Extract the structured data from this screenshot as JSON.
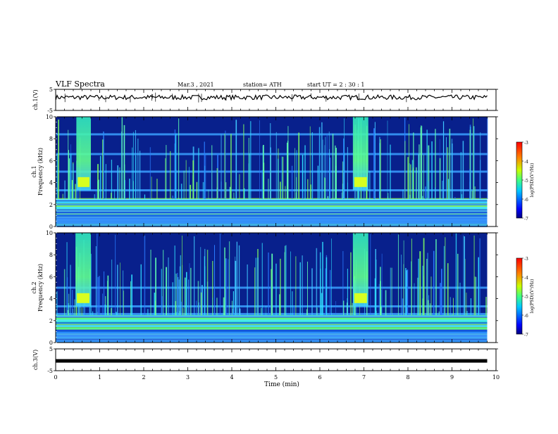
{
  "header": {
    "title": "VLF Spectra",
    "date": "Mar.3  , 2021",
    "station": "station= ATH",
    "start": "start  UT  =   2  : 30 : 1"
  },
  "chart_data": [
    {
      "type": "line",
      "panel": "ch1-voltage",
      "ylabel": "ch.1(V)",
      "ylim": [
        -5,
        5
      ],
      "yticks": [
        5,
        -5
      ],
      "xlim": [
        0,
        10
      ],
      "trace_level": 1.2,
      "trace_range": [
        0.4,
        2.0
      ]
    },
    {
      "type": "heatmap",
      "panel": "ch1-spectrogram",
      "ylabel": [
        "ch.1",
        "Frequency  (kHz)"
      ],
      "ylim": [
        0,
        10
      ],
      "yticks": [
        0,
        2,
        4,
        6,
        8,
        10
      ],
      "xlim": [
        0,
        10
      ],
      "data_end_min": 9.8,
      "bursts_min": [
        [
          0.47,
          0.8
        ],
        [
          6.75,
          7.1
        ]
      ],
      "bands_khz": [
        2.2,
        1.7,
        1.4,
        3.3,
        5.0,
        6.6,
        8.4
      ],
      "colorbar": {
        "label": "log(PSD)(V²/Hz)",
        "range": [
          -7,
          -3
        ],
        "ticks": [
          -3,
          -4,
          -5,
          -6,
          -7
        ]
      }
    },
    {
      "type": "heatmap",
      "panel": "ch2-spectrogram",
      "ylabel": [
        "ch.2",
        "Frequency  (kHz)"
      ],
      "ylim": [
        0,
        10
      ],
      "yticks": [
        0,
        2,
        4,
        6,
        8,
        10
      ],
      "xlim": [
        0,
        10
      ],
      "data_end_min": 9.8,
      "bursts_min": [
        [
          0.45,
          0.8
        ],
        [
          6.75,
          7.1
        ]
      ],
      "bands_khz": [
        2.0,
        1.5,
        2.6,
        3.3,
        5.0
      ],
      "colorbar": {
        "label": "log(PSD)(V²/Hz)",
        "range": [
          -7,
          -3
        ],
        "ticks": [
          -3,
          -4,
          -5,
          -6,
          -7
        ]
      }
    },
    {
      "type": "line",
      "panel": "ch3-voltage",
      "ylabel": "ch.3(V)",
      "ylim": [
        -5,
        5
      ],
      "yticks": [
        5,
        -5
      ],
      "xlim": [
        0,
        10
      ],
      "trace_level": -0.5
    }
  ],
  "xaxis": {
    "label": "Time  (min)",
    "ticks": [
      0,
      1,
      2,
      3,
      4,
      5,
      6,
      7,
      8,
      9,
      10
    ]
  }
}
